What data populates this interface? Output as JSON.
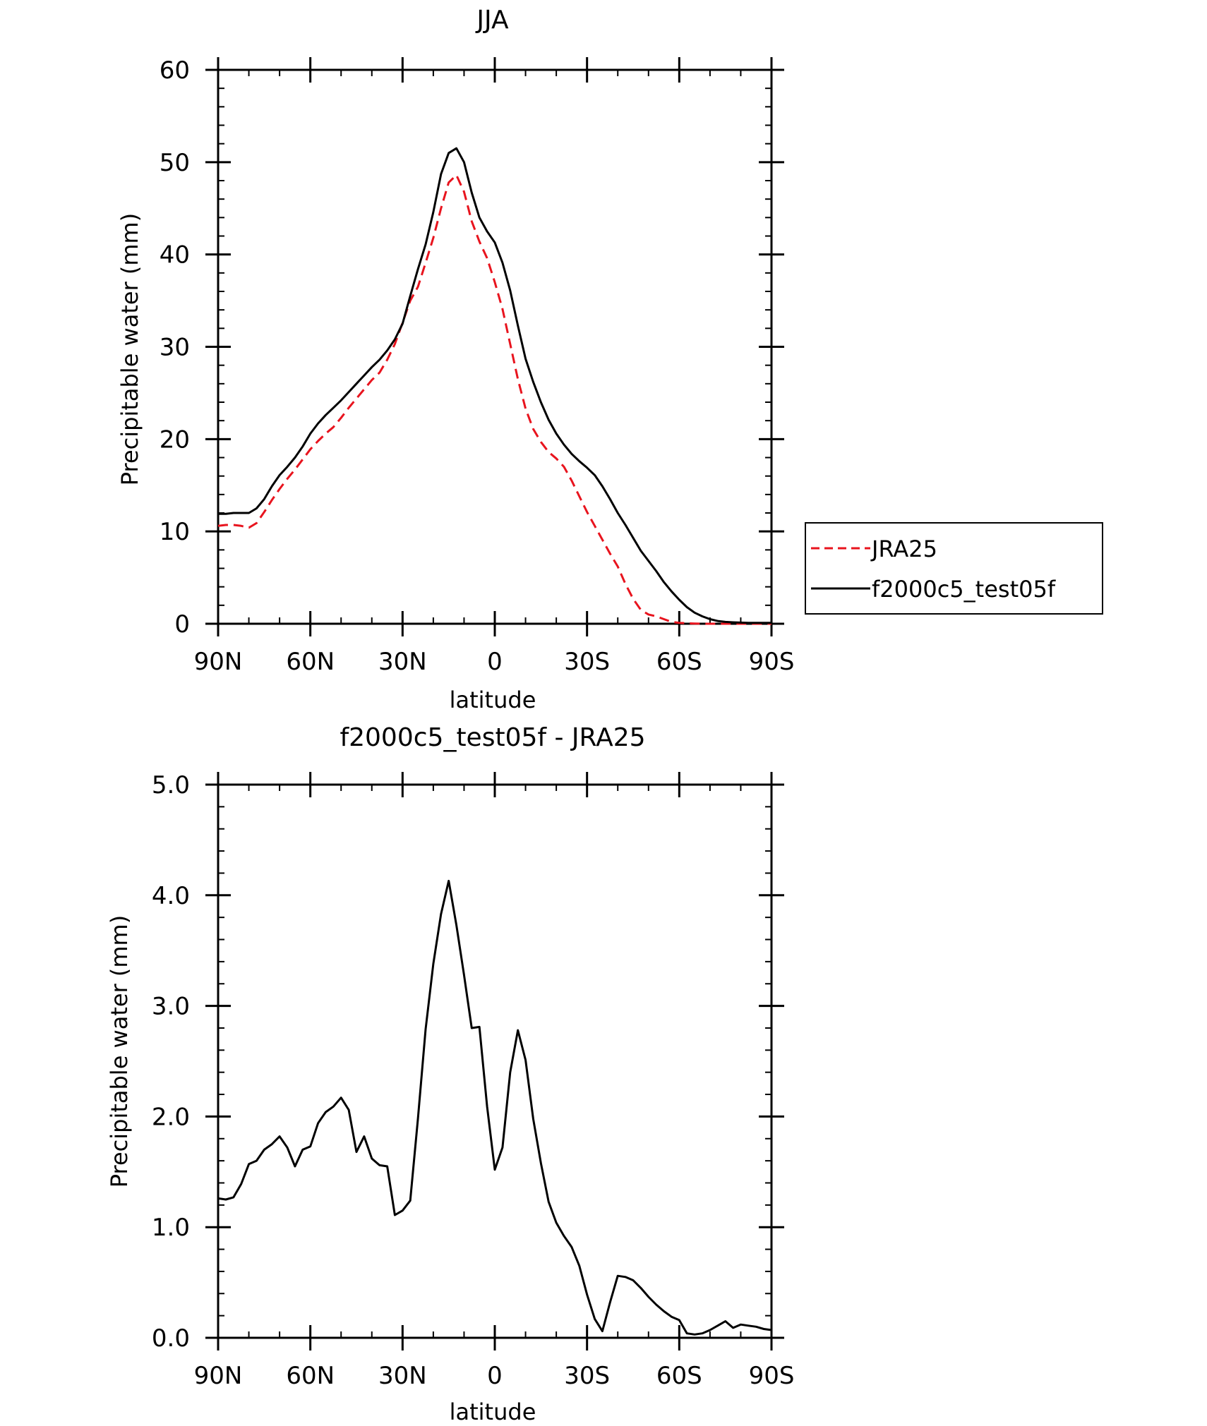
{
  "chart_data": [
    {
      "type": "line",
      "title": "JJA",
      "xlabel": "latitude",
      "ylabel": "Precipitable water (mm)",
      "xlim": [
        90,
        -90
      ],
      "ylim": [
        0,
        60
      ],
      "x_ticks": [
        90,
        60,
        30,
        0,
        -30,
        -60,
        -90
      ],
      "x_tick_labels": [
        "90N",
        "60N",
        "30N",
        "0",
        "30S",
        "60S",
        "90S"
      ],
      "y_ticks": [
        0,
        10,
        20,
        30,
        40,
        50,
        60
      ],
      "y_tick_labels": [
        "0",
        "10",
        "20",
        "30",
        "40",
        "50",
        "60"
      ],
      "y_minor_step": 2,
      "x_minor_step": 10,
      "grid": false,
      "legend_position": "right",
      "series": [
        {
          "name": "JRA25",
          "color": "#e8141e",
          "dash": "dashed",
          "x": [
            90,
            87.5,
            85,
            82.5,
            80,
            77.5,
            75,
            72.5,
            70,
            67.5,
            65,
            62.5,
            60,
            57.5,
            55,
            52.5,
            50,
            47.5,
            45,
            42.5,
            40,
            37.5,
            35,
            32.5,
            30,
            27.5,
            25,
            22.5,
            20,
            17.5,
            15,
            12.5,
            10,
            7.5,
            5,
            2.5,
            0,
            -2.5,
            -5,
            -7.5,
            -10,
            -12.5,
            -15,
            -17.5,
            -20,
            -22.5,
            -25,
            -27.5,
            -30,
            -32.5,
            -35,
            -37.5,
            -40,
            -42.5,
            -45,
            -47.5,
            -50,
            -52.5,
            -55,
            -57.5,
            -60,
            -62.5,
            -65,
            -67.5,
            -70,
            -72.5,
            -75,
            -77.5,
            -80,
            -82.5,
            -85,
            -87.5,
            -90
          ],
          "values": [
            10.6,
            10.7,
            10.7,
            10.6,
            10.4,
            10.9,
            12.1,
            13.4,
            14.6,
            15.7,
            16.7,
            17.8,
            18.9,
            19.8,
            20.6,
            21.3,
            22.3,
            23.4,
            24.4,
            25.4,
            26.4,
            27.2,
            28.6,
            30.3,
            32.6,
            35.0,
            36.5,
            39.1,
            41.8,
            45.0,
            47.8,
            48.6,
            46.8,
            43.6,
            41.4,
            39.6,
            37.0,
            34.1,
            30.3,
            26.5,
            23.3,
            21.1,
            19.7,
            18.6,
            17.9,
            17.0,
            15.5,
            13.8,
            12.1,
            10.6,
            9.1,
            7.6,
            6.2,
            4.3,
            2.7,
            1.5,
            1.0,
            0.8,
            0.5,
            0.2,
            0.1,
            0.05,
            0.02,
            0.01,
            0.0,
            0.0,
            0.0,
            0.0,
            0.0,
            0.0,
            0.0,
            0.0,
            0.0
          ]
        },
        {
          "name": "f2000c5_test05f",
          "color": "#000000",
          "dash": "solid",
          "x": [
            90,
            87.5,
            85,
            82.5,
            80,
            77.5,
            75,
            72.5,
            70,
            67.5,
            65,
            62.5,
            60,
            57.5,
            55,
            52.5,
            50,
            47.5,
            45,
            42.5,
            40,
            37.5,
            35,
            32.5,
            30,
            27.5,
            25,
            22.5,
            20,
            17.5,
            15,
            12.5,
            10,
            7.5,
            5,
            2.5,
            0,
            -2.5,
            -5,
            -7.5,
            -10,
            -12.5,
            -15,
            -17.5,
            -20,
            -22.5,
            -25,
            -27.5,
            -30,
            -32.5,
            -35,
            -37.5,
            -40,
            -42.5,
            -45,
            -47.5,
            -50,
            -52.5,
            -55,
            -57.5,
            -60,
            -62.5,
            -65,
            -67.5,
            -70,
            -72.5,
            -75,
            -77.5,
            -80,
            -82.5,
            -85,
            -87.5,
            -90
          ],
          "values": [
            11.9,
            11.9,
            12.0,
            12.0,
            12.0,
            12.5,
            13.5,
            14.9,
            16.1,
            17.0,
            18.0,
            19.2,
            20.6,
            21.7,
            22.6,
            23.4,
            24.2,
            25.1,
            26.0,
            26.9,
            27.8,
            28.6,
            29.6,
            30.8,
            32.5,
            35.5,
            38.4,
            41.1,
            44.6,
            48.7,
            51.0,
            51.5,
            50.0,
            46.7,
            44.0,
            42.5,
            41.3,
            39.1,
            36.1,
            32.3,
            28.7,
            26.2,
            24.0,
            22.1,
            20.6,
            19.4,
            18.4,
            17.6,
            16.9,
            16.1,
            14.9,
            13.5,
            12.0,
            10.7,
            9.3,
            7.9,
            6.8,
            5.7,
            4.5,
            3.5,
            2.6,
            1.8,
            1.2,
            0.8,
            0.5,
            0.3,
            0.2,
            0.15,
            0.12,
            0.1,
            0.1,
            0.1,
            0.1
          ]
        }
      ]
    },
    {
      "type": "line",
      "title": "f2000c5_test05f - JRA25",
      "xlabel": "latitude",
      "ylabel": "Precipitable water (mm)",
      "xlim": [
        90,
        -90
      ],
      "ylim": [
        0,
        5
      ],
      "x_ticks": [
        90,
        60,
        30,
        0,
        -30,
        -60,
        -90
      ],
      "x_tick_labels": [
        "90N",
        "60N",
        "30N",
        "0",
        "30S",
        "60S",
        "90S"
      ],
      "y_ticks": [
        0,
        1,
        2,
        3,
        4,
        5
      ],
      "y_tick_labels": [
        "0.0",
        "1.0",
        "2.0",
        "3.0",
        "4.0",
        "5.0"
      ],
      "y_minor_step": 0.2,
      "x_minor_step": 10,
      "grid": false,
      "series": [
        {
          "color": "#000000",
          "dash": "solid",
          "x": [
            90,
            87.5,
            85,
            82.5,
            80,
            77.5,
            75,
            72.5,
            70,
            67.5,
            65,
            62.5,
            60,
            57.5,
            55,
            52.5,
            50,
            47.5,
            45,
            42.5,
            40,
            37.5,
            35,
            32.5,
            30,
            27.5,
            25,
            22.5,
            20,
            17.5,
            15,
            12.5,
            10,
            7.5,
            5,
            2.5,
            0,
            -2.5,
            -5,
            -7.5,
            -10,
            -12.5,
            -15,
            -17.5,
            -20,
            -22.5,
            -25,
            -27.5,
            -30,
            -32.5,
            -35,
            -37.5,
            -40,
            -42.5,
            -45,
            -47.5,
            -50,
            -52.5,
            -55,
            -57.5,
            -60,
            -62.5,
            -65,
            -67.5,
            -70,
            -72.5,
            -75,
            -77.5,
            -80,
            -82.5,
            -85,
            -87.5,
            -90
          ],
          "values": [
            1.26,
            1.25,
            1.27,
            1.39,
            1.57,
            1.6,
            1.7,
            1.75,
            1.82,
            1.72,
            1.55,
            1.7,
            1.73,
            1.94,
            2.04,
            2.09,
            2.17,
            2.06,
            1.68,
            1.82,
            1.62,
            1.56,
            1.55,
            1.11,
            1.15,
            1.24,
            1.98,
            2.79,
            3.38,
            3.83,
            4.13,
            3.73,
            3.28,
            2.8,
            2.81,
            2.09,
            1.52,
            1.72,
            2.4,
            2.78,
            2.51,
            1.98,
            1.58,
            1.23,
            1.04,
            0.92,
            0.82,
            0.65,
            0.39,
            0.17,
            0.06,
            0.32,
            0.56,
            0.55,
            0.52,
            0.45,
            0.37,
            0.3,
            0.24,
            0.19,
            0.16,
            0.04,
            0.03,
            0.04,
            0.07,
            0.11,
            0.15,
            0.09,
            0.12,
            0.11,
            0.1,
            0.08,
            0.07
          ]
        }
      ]
    }
  ]
}
